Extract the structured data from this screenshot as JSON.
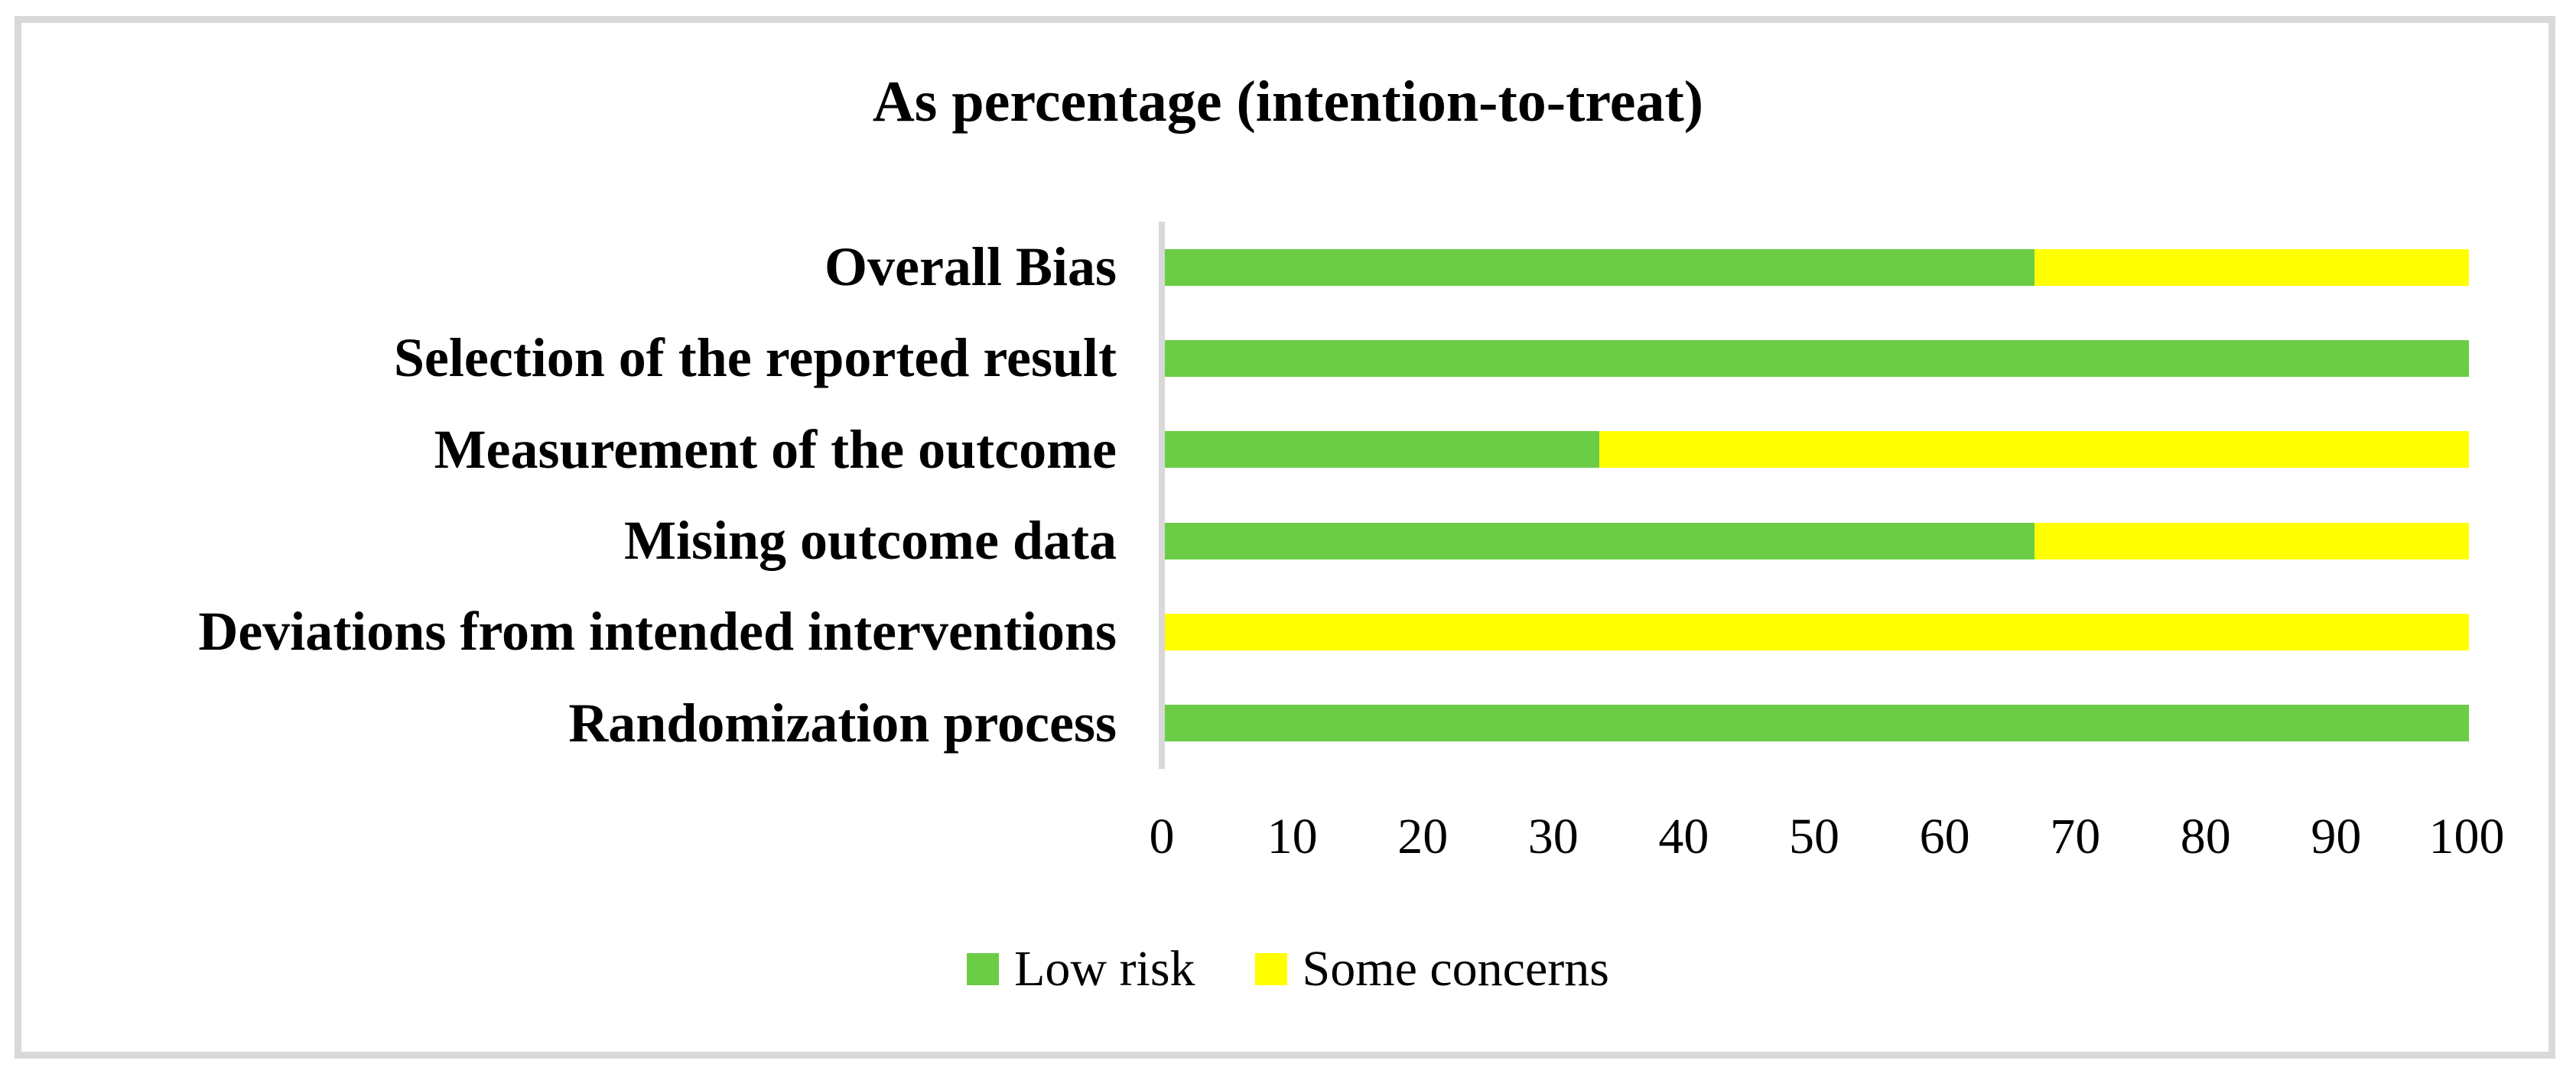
{
  "figure": {
    "frame_color": "#D9D9D9",
    "background_color": "#FFFFFF",
    "axis_line_color": "#D9D9D9",
    "text_color": "#000000"
  },
  "chart_data": {
    "type": "bar",
    "orientation": "horizontal",
    "stacked": true,
    "title": "As percentage (intention-to-treat)",
    "categories": [
      "Overall Bias",
      "Selection of the reported result",
      "Measurement of the outcome",
      "Mising outcome data",
      "Deviations from intended interventions",
      "Randomization process"
    ],
    "series": [
      {
        "name": "Low risk",
        "color": "#6BCD45",
        "values": [
          66.7,
          100,
          33.3,
          66.7,
          0,
          100
        ]
      },
      {
        "name": "Some concerns",
        "color": "#FFFF00",
        "values": [
          33.3,
          0,
          66.7,
          33.3,
          100,
          0
        ]
      }
    ],
    "xlim": [
      0,
      100
    ],
    "x_ticks": [
      "0",
      "10",
      "20",
      "30",
      "40",
      "50",
      "60",
      "70",
      "80",
      "90",
      "100"
    ],
    "grid": false,
    "legend_position": "bottom"
  },
  "legend": {
    "items": [
      {
        "label": "Low risk",
        "color": "#6BCD45"
      },
      {
        "label": "Some concerns",
        "color": "#FFFF00"
      }
    ]
  }
}
